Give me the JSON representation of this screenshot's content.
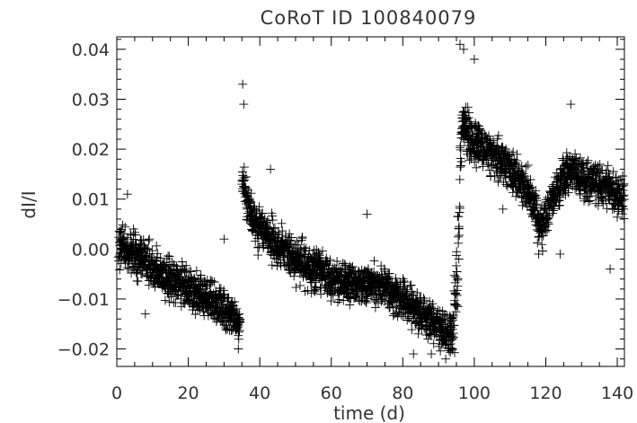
{
  "chart_data": {
    "type": "scatter",
    "title": "CoRoT ID 100840079",
    "xlabel": "time (d)",
    "ylabel": "dI/I",
    "xlim": [
      0,
      142
    ],
    "ylim": [
      -0.0235,
      0.0425
    ],
    "x_ticks": [
      0,
      20,
      40,
      60,
      80,
      100,
      120,
      140
    ],
    "x_tick_labels": [
      "0",
      "20",
      "40",
      "60",
      "80",
      "100",
      "120",
      "140"
    ],
    "y_ticks": [
      -0.02,
      -0.01,
      0.0,
      0.01,
      0.02,
      0.03,
      0.04
    ],
    "y_tick_labels": [
      "−0.02",
      "−0.01",
      "0.00",
      "0.01",
      "0.02",
      "0.03",
      "0.04"
    ],
    "marker": "plus",
    "color": "#000000",
    "grid": false,
    "trend": [
      [
        0.5,
        0.001
      ],
      [
        5,
        -0.001
      ],
      [
        10,
        -0.004
      ],
      [
        15,
        -0.006
      ],
      [
        20,
        -0.008
      ],
      [
        25,
        -0.01
      ],
      [
        30,
        -0.012
      ],
      [
        33,
        -0.014
      ],
      [
        34.5,
        -0.015
      ],
      [
        35,
        0.014
      ],
      [
        36,
        0.01
      ],
      [
        38,
        0.006
      ],
      [
        40,
        0.004
      ],
      [
        45,
        0.001
      ],
      [
        50,
        -0.002
      ],
      [
        55,
        -0.004
      ],
      [
        60,
        -0.006
      ],
      [
        65,
        -0.007
      ],
      [
        70,
        -0.007
      ],
      [
        75,
        -0.008
      ],
      [
        80,
        -0.01
      ],
      [
        85,
        -0.013
      ],
      [
        90,
        -0.016
      ],
      [
        94,
        -0.017
      ],
      [
        95.5,
        -0.002
      ],
      [
        96.5,
        0.026
      ],
      [
        98,
        0.023
      ],
      [
        100,
        0.022
      ],
      [
        105,
        0.019
      ],
      [
        110,
        0.016
      ],
      [
        115,
        0.012
      ],
      [
        118,
        0.006
      ],
      [
        119,
        0.005
      ],
      [
        122,
        0.01
      ],
      [
        125,
        0.014
      ],
      [
        127,
        0.016
      ],
      [
        130,
        0.014
      ],
      [
        135,
        0.013
      ],
      [
        140,
        0.011
      ],
      [
        142,
        0.01
      ]
    ],
    "highlighted_points": [
      [
        3,
        0.011
      ],
      [
        8,
        -0.013
      ],
      [
        30,
        0.002
      ],
      [
        35.2,
        0.033
      ],
      [
        35.5,
        0.029
      ],
      [
        43,
        0.016
      ],
      [
        70,
        0.007
      ],
      [
        96,
        0.041
      ],
      [
        97,
        0.04
      ],
      [
        100,
        0.038
      ],
      [
        127,
        0.029
      ],
      [
        124,
        -0.001
      ],
      [
        138,
        -0.004
      ],
      [
        118,
        -0.001
      ],
      [
        108,
        0.008
      ],
      [
        92,
        -0.022
      ],
      [
        88,
        -0.021
      ],
      [
        83,
        -0.021
      ],
      [
        34,
        -0.02
      ]
    ]
  }
}
